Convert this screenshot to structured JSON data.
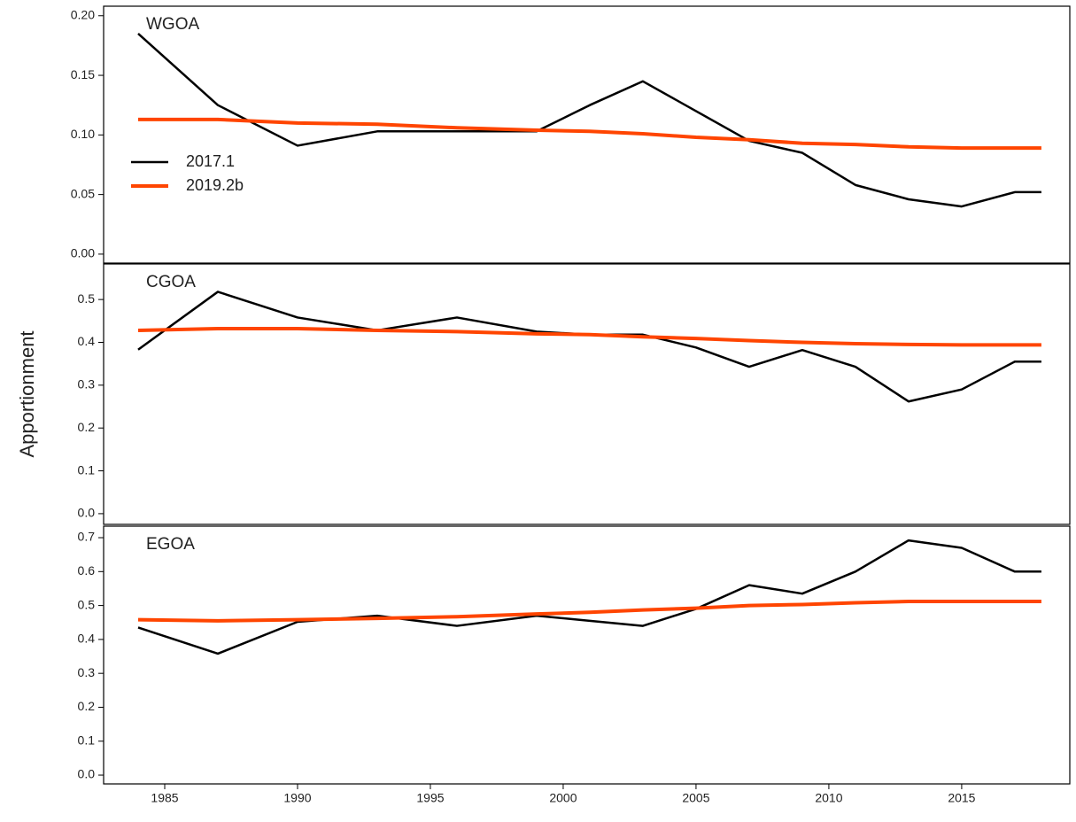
{
  "y_label": "Apportionment",
  "chart_data": [
    {
      "type": "line",
      "title": "WGOA",
      "legend": "upper left",
      "x": [
        1984,
        1987,
        1990,
        1993,
        1996,
        1999,
        2001,
        2003,
        2005,
        2007,
        2009,
        2011,
        2013,
        2015,
        2017,
        2018
      ],
      "series": [
        {
          "name": "2017.1",
          "color": "#000000",
          "values": [
            0.185,
            0.125,
            0.091,
            0.103,
            0.103,
            0.103,
            0.125,
            0.145,
            0.12,
            0.095,
            0.085,
            0.058,
            0.046,
            0.04,
            0.052,
            0.052
          ]
        },
        {
          "name": "2019.2b",
          "color": "#ff4500",
          "values": [
            0.113,
            0.113,
            0.11,
            0.109,
            0.106,
            0.104,
            0.103,
            0.101,
            0.098,
            0.096,
            0.093,
            0.092,
            0.09,
            0.089,
            0.089,
            0.089
          ]
        }
      ],
      "xlim": [
        1982.7,
        2019.07
      ],
      "ylim": [
        -0.0075,
        0.208
      ],
      "yticks": [
        {
          "value": 0,
          "label": "0.00"
        },
        0.05,
        {
          "value": 0.1,
          "label": "0.10"
        },
        0.15,
        {
          "value": 0.2,
          "label": "0.20"
        }
      ]
    },
    {
      "type": "line",
      "title": "CGOA",
      "x": [
        1984,
        1987,
        1990,
        1993,
        1996,
        1999,
        2001,
        2003,
        2005,
        2007,
        2009,
        2011,
        2013,
        2015,
        2017,
        2018
      ],
      "series": [
        {
          "color": "#000000",
          "values": [
            0.383,
            0.518,
            0.458,
            0.428,
            0.458,
            0.425,
            0.418,
            0.418,
            0.388,
            0.343,
            0.382,
            0.343,
            0.262,
            0.29,
            0.355,
            0.355
          ]
        },
        {
          "color": "#ff4500",
          "values": [
            0.428,
            0.432,
            0.432,
            0.428,
            0.425,
            0.42,
            0.418,
            0.413,
            0.409,
            0.404,
            0.4,
            0.397,
            0.395,
            0.394,
            0.394,
            0.394
          ]
        }
      ],
      "xlim": [
        1982.7,
        2019.07
      ],
      "ylim": [
        -0.025,
        0.583
      ],
      "yticks": [
        {
          "value": 0,
          "label": "0.0"
        },
        0.1,
        0.2,
        0.3,
        0.4,
        0.5
      ]
    },
    {
      "type": "line",
      "title": "EGOA",
      "x": [
        1984,
        1987,
        1990,
        1993,
        1996,
        1999,
        2001,
        2003,
        2005,
        2007,
        2009,
        2011,
        2013,
        2015,
        2017,
        2018
      ],
      "series": [
        {
          "color": "#000000",
          "values": [
            0.435,
            0.358,
            0.452,
            0.47,
            0.44,
            0.47,
            0.455,
            0.44,
            0.49,
            0.56,
            0.535,
            0.6,
            0.692,
            0.67,
            0.6,
            0.6
          ]
        },
        {
          "color": "#ff4500",
          "values": [
            0.458,
            0.455,
            0.458,
            0.462,
            0.467,
            0.475,
            0.48,
            0.487,
            0.492,
            0.5,
            0.503,
            0.508,
            0.512,
            0.512,
            0.512,
            0.512
          ]
        }
      ],
      "xlim": [
        1982.7,
        2019.07
      ],
      "ylim": [
        -0.026,
        0.734
      ],
      "yticks": [
        {
          "value": 0,
          "label": "0.0"
        },
        0.1,
        0.2,
        0.3,
        0.4,
        0.5,
        0.6,
        0.7
      ],
      "xticks": [
        1985,
        1990,
        1995,
        2000,
        2005,
        2010,
        2015
      ]
    }
  ]
}
